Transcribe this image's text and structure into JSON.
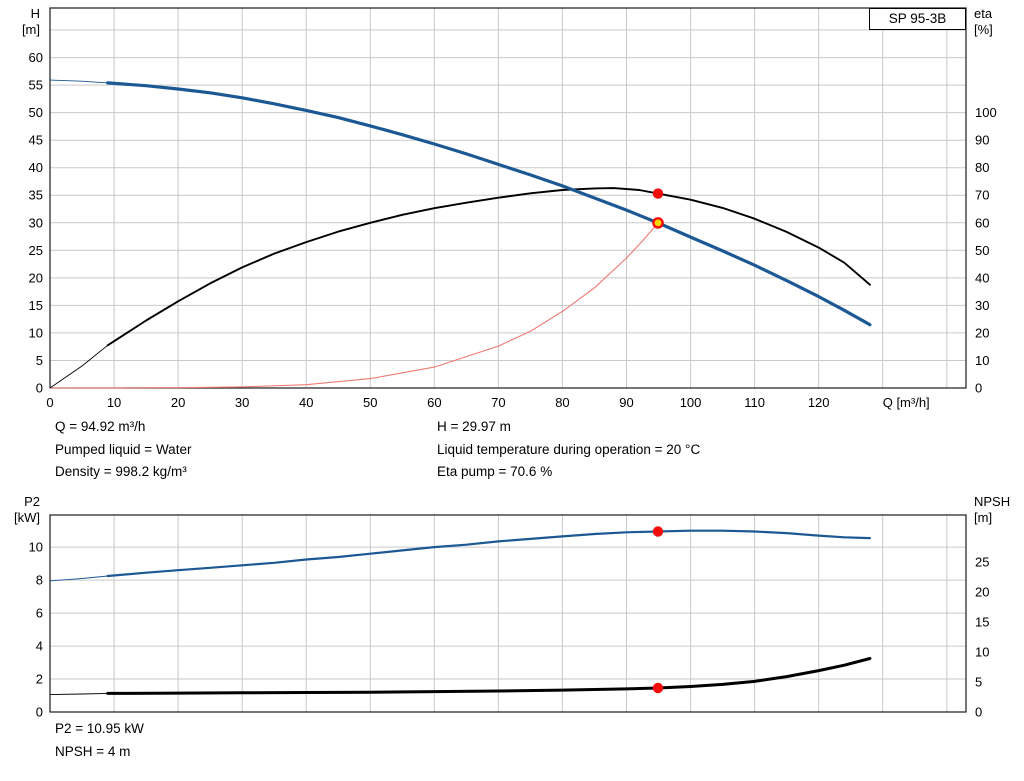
{
  "model": "SP 95-3B",
  "colors": {
    "grid": "#c9c9c9",
    "border": "#1a1a1a",
    "head_blue": "#1b5894",
    "eta_black": "#000000",
    "system_red": "#ef7a70",
    "dot_red": "#f20d0d",
    "dot_yellow": "#ffd800"
  },
  "info_top": {
    "left": [
      "Q = 94.92 m³/h",
      "Pumped liquid = Water",
      "Density = 998.2 kg/m³"
    ],
    "right": [
      "H = 29.97 m",
      "Liquid temperature during operation = 20 °C",
      "Eta pump = 70.6 %"
    ]
  },
  "info_bottom": [
    "P2 = 10.95 kW",
    "NPSH = 4 m"
  ],
  "chart_data": [
    {
      "type": "line",
      "title": "SP 95-3B head and efficiency curves",
      "x_axis": {
        "label": "Q [m³/h]",
        "min": 0,
        "max": 143,
        "ticks": [
          0,
          10,
          20,
          30,
          40,
          50,
          60,
          70,
          80,
          90,
          100,
          110,
          120
        ],
        "grid": [
          10,
          20,
          30,
          40,
          50,
          60,
          70,
          80,
          90,
          100,
          110,
          120,
          130,
          140
        ]
      },
      "y_left": {
        "label_lines": [
          "H",
          "[m]"
        ],
        "min": 0,
        "max": 69,
        "ticks": [
          0,
          5,
          10,
          15,
          20,
          25,
          30,
          35,
          40,
          45,
          50,
          55,
          60
        ],
        "grid": [
          5,
          10,
          15,
          20,
          25,
          30,
          35,
          40,
          45,
          50,
          55,
          60,
          65
        ]
      },
      "y_right": {
        "label_lines": [
          "eta",
          "[%]"
        ],
        "min": 0,
        "max": 138,
        "ticks": [
          0,
          10,
          20,
          30,
          40,
          50,
          60,
          70,
          80,
          90,
          100
        ]
      },
      "series": [
        {
          "name": "system-curve",
          "axis": "left",
          "color": "#ef7a70",
          "width": 1.1,
          "points": [
            [
              0,
              0
            ],
            [
              10,
              0.02
            ],
            [
              20,
              0.05
            ],
            [
              30,
              0.2
            ],
            [
              40,
              0.6
            ],
            [
              50,
              1.7
            ],
            [
              60,
              3.8
            ],
            [
              70,
              7.6
            ],
            [
              75,
              10.3
            ],
            [
              80,
              13.9
            ],
            [
              85,
              18.2
            ],
            [
              90,
              23.6
            ],
            [
              92.5,
              26.7
            ],
            [
              94.92,
              29.97
            ]
          ]
        },
        {
          "name": "efficiency-curve",
          "axis": "right",
          "color": "#000000",
          "width": 1.9,
          "thin_until": 9,
          "points": [
            [
              0,
              0
            ],
            [
              5,
              8
            ],
            [
              9,
              15.5
            ],
            [
              15,
              24.5
            ],
            [
              20,
              31.5
            ],
            [
              25,
              38
            ],
            [
              30,
              43.8
            ],
            [
              35,
              48.8
            ],
            [
              40,
              53
            ],
            [
              45,
              56.8
            ],
            [
              50,
              60
            ],
            [
              55,
              62.9
            ],
            [
              60,
              65.3
            ],
            [
              65,
              67.3
            ],
            [
              70,
              69.1
            ],
            [
              75,
              70.7
            ],
            [
              80,
              71.9
            ],
            [
              85,
              72.5
            ],
            [
              88,
              72.6
            ],
            [
              92,
              71.9
            ],
            [
              94.92,
              70.6
            ],
            [
              100,
              68.4
            ],
            [
              105,
              65.4
            ],
            [
              110,
              61.5
            ],
            [
              115,
              56.7
            ],
            [
              120,
              51
            ],
            [
              124,
              45.5
            ],
            [
              128,
              37.5
            ]
          ]
        },
        {
          "name": "head-curve",
          "axis": "left",
          "color": "#1b5894",
          "width": 3.2,
          "thin_until": 9,
          "points": [
            [
              0,
              55.9
            ],
            [
              5,
              55.7
            ],
            [
              9,
              55.4
            ],
            [
              15,
              54.9
            ],
            [
              20,
              54.3
            ],
            [
              25,
              53.6
            ],
            [
              30,
              52.7
            ],
            [
              35,
              51.6
            ],
            [
              40,
              50.4
            ],
            [
              45,
              49.1
            ],
            [
              50,
              47.6
            ],
            [
              55,
              46
            ],
            [
              60,
              44.3
            ],
            [
              65,
              42.5
            ],
            [
              70,
              40.6
            ],
            [
              75,
              38.7
            ],
            [
              80,
              36.7
            ],
            [
              85,
              34.5
            ],
            [
              90,
              32.3
            ],
            [
              94.92,
              29.97
            ],
            [
              100,
              27.4
            ],
            [
              105,
              24.9
            ],
            [
              110,
              22.3
            ],
            [
              115,
              19.5
            ],
            [
              120,
              16.6
            ],
            [
              124,
              14.1
            ],
            [
              128,
              11.5
            ]
          ]
        }
      ],
      "markers": [
        {
          "label": "duty-point-efficiency",
          "axis": "right",
          "q": 94.92,
          "v": 70.6,
          "r": 5.2,
          "fill": "#f20d0d"
        },
        {
          "label": "duty-point-head",
          "axis": "left",
          "q": 94.92,
          "v": 29.97,
          "r": 4.6,
          "fill": "#ffd800",
          "stroke": "#f20d0d",
          "stroke_width": 2.4
        }
      ]
    },
    {
      "type": "line",
      "title": "P2 and NPSH curves",
      "x_axis": {
        "label": "",
        "min": 0,
        "max": 143,
        "ticks": [],
        "grid": [
          10,
          20,
          30,
          40,
          50,
          60,
          70,
          80,
          90,
          100,
          110,
          120,
          130,
          140
        ]
      },
      "y_left": {
        "label_lines": [
          "P2",
          "[kW]"
        ],
        "min": 0,
        "max": 11.95,
        "ticks": [
          0,
          2,
          4,
          6,
          8,
          10
        ],
        "grid": [
          2,
          4,
          6,
          8,
          10
        ]
      },
      "y_right": {
        "label_lines": [
          "NPSH",
          "[m]"
        ],
        "min": 0,
        "max": 32.8,
        "ticks": [
          0,
          5,
          10,
          15,
          20,
          25
        ]
      },
      "series": [
        {
          "name": "p2-curve",
          "axis": "left",
          "color": "#1b5894",
          "width": 2.2,
          "thin_until": 9,
          "points": [
            [
              0,
              7.95
            ],
            [
              5,
              8.1
            ],
            [
              9,
              8.25
            ],
            [
              15,
              8.45
            ],
            [
              20,
              8.6
            ],
            [
              25,
              8.75
            ],
            [
              30,
              8.9
            ],
            [
              35,
              9.05
            ],
            [
              40,
              9.25
            ],
            [
              45,
              9.4
            ],
            [
              50,
              9.6
            ],
            [
              55,
              9.8
            ],
            [
              60,
              10
            ],
            [
              65,
              10.15
            ],
            [
              70,
              10.35
            ],
            [
              75,
              10.5
            ],
            [
              80,
              10.65
            ],
            [
              85,
              10.8
            ],
            [
              90,
              10.9
            ],
            [
              94.92,
              10.95
            ],
            [
              100,
              11
            ],
            [
              105,
              11
            ],
            [
              110,
              10.95
            ],
            [
              115,
              10.85
            ],
            [
              120,
              10.7
            ],
            [
              124,
              10.6
            ],
            [
              128,
              10.55
            ]
          ]
        },
        {
          "name": "npsh-curve",
          "axis": "right",
          "color": "#000000",
          "width": 3,
          "thin_until": 9,
          "points": [
            [
              0,
              2.9
            ],
            [
              5,
              3
            ],
            [
              9,
              3.1
            ],
            [
              20,
              3.15
            ],
            [
              30,
              3.2
            ],
            [
              40,
              3.25
            ],
            [
              50,
              3.3
            ],
            [
              60,
              3.4
            ],
            [
              70,
              3.5
            ],
            [
              80,
              3.65
            ],
            [
              85,
              3.75
            ],
            [
              90,
              3.85
            ],
            [
              94.92,
              4
            ],
            [
              100,
              4.25
            ],
            [
              105,
              4.6
            ],
            [
              110,
              5.1
            ],
            [
              115,
              5.9
            ],
            [
              120,
              6.9
            ],
            [
              124,
              7.8
            ],
            [
              128,
              8.9
            ]
          ]
        }
      ],
      "markers": [
        {
          "label": "duty-point-p2",
          "axis": "left",
          "q": 94.92,
          "v": 10.95,
          "r": 5.2,
          "fill": "#f20d0d"
        },
        {
          "label": "duty-point-npsh",
          "axis": "right",
          "q": 94.92,
          "v": 4,
          "r": 5.2,
          "fill": "#f20d0d"
        }
      ]
    }
  ]
}
